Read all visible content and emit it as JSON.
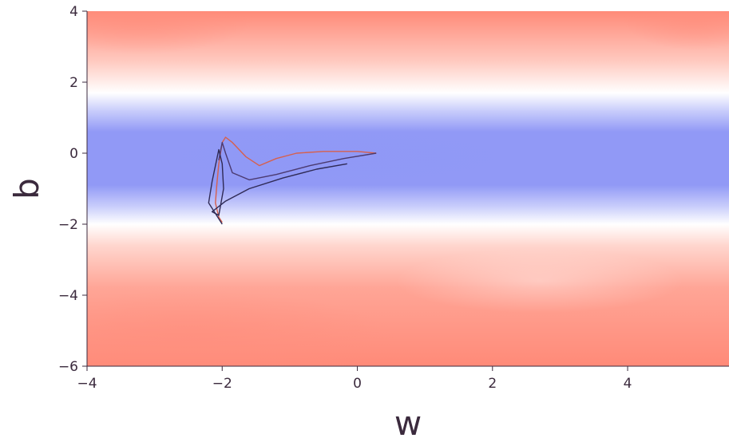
{
  "chart_data": {
    "type": "contour",
    "title": "",
    "xlabel": "w",
    "ylabel": "b",
    "xlim": [
      -4,
      5.5
    ],
    "ylim": [
      -6,
      4
    ],
    "xticks": [
      "−4",
      "−2",
      "0",
      "2",
      "4"
    ],
    "yticks": [
      "−6",
      "−4",
      "−2",
      "0",
      "2",
      "4"
    ],
    "colormap": {
      "low": "#9199f6",
      "mid": "#ffffff",
      "high": "#ff8a78"
    },
    "grid": false,
    "series": [
      {
        "color": "#d6604d",
        "x": [
          0.28,
          0.0,
          -0.5,
          -0.9,
          -1.2,
          -1.45,
          -1.65,
          -1.85,
          -1.95,
          -2.0,
          -2.05,
          -2.08,
          -2.1,
          -2.05,
          -2.0
        ],
        "y": [
          0.0,
          0.05,
          0.05,
          0.0,
          -0.15,
          -0.35,
          -0.1,
          0.3,
          0.45,
          0.3,
          -0.3,
          -0.9,
          -1.4,
          -1.8,
          -1.95
        ]
      },
      {
        "color": "#4b3a70",
        "x": [
          0.28,
          -0.2,
          -0.7,
          -1.2,
          -1.6,
          -1.85,
          -1.95,
          -2.0,
          -2.05
        ],
        "y": [
          0.0,
          -0.15,
          -0.35,
          -0.6,
          -0.75,
          -0.55,
          0.0,
          0.3,
          -0.2
        ]
      },
      {
        "color": "#2f2a55",
        "x": [
          -0.15,
          -0.6,
          -1.1,
          -1.6,
          -1.95,
          -2.15,
          -2.05,
          -1.98,
          -2.0,
          -2.05,
          -2.15,
          -2.2,
          -2.0
        ],
        "y": [
          -0.3,
          -0.45,
          -0.7,
          -1.0,
          -1.35,
          -1.65,
          -1.75,
          -1.0,
          -0.3,
          0.1,
          -0.8,
          -1.4,
          -2.0
        ]
      }
    ]
  }
}
